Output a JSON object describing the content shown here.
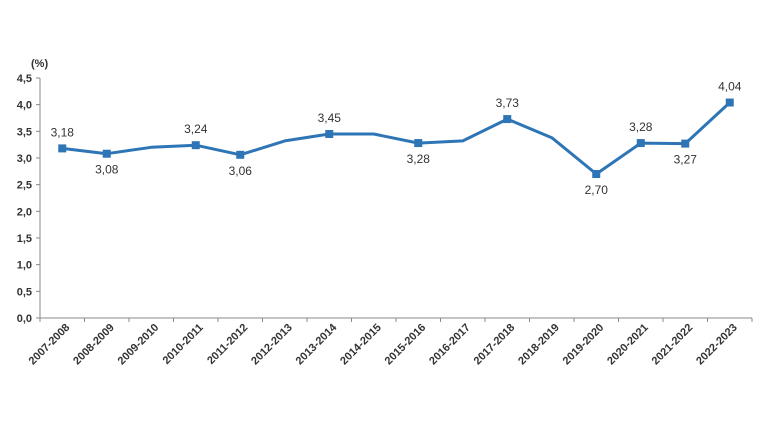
{
  "chart_data": {
    "type": "line",
    "title": "",
    "xlabel": "",
    "ylabel": "(%)",
    "ylim": [
      0,
      4.5
    ],
    "yticks": [
      "0,0",
      "0,5",
      "1,0",
      "1,5",
      "2,0",
      "2,5",
      "3,0",
      "3,5",
      "4,0",
      "4,5"
    ],
    "ytick_values": [
      0,
      0.5,
      1.0,
      1.5,
      2.0,
      2.5,
      3.0,
      3.5,
      4.0,
      4.5
    ],
    "grid": false,
    "legend": "none",
    "line_color": "#2E75B6",
    "categories": [
      "2007-2008",
      "2008-2009",
      "2009-2010",
      "2010-2011",
      "2011-2012",
      "2012-2013",
      "2013-2014",
      "2014-2015",
      "2015-2016",
      "2016-2017",
      "2017-2018",
      "2018-2019",
      "2019-2020",
      "2020-2021",
      "2021-2022",
      "2022-2023"
    ],
    "values": [
      3.18,
      3.08,
      3.2,
      3.24,
      3.06,
      3.32,
      3.45,
      3.45,
      3.28,
      3.32,
      3.73,
      3.38,
      2.7,
      3.28,
      3.27,
      4.04
    ],
    "labeled_points": [
      {
        "category": "2007-2008",
        "label": "3,18",
        "position": "above"
      },
      {
        "category": "2008-2009",
        "label": "3,08",
        "position": "below"
      },
      {
        "category": "2010-2011",
        "label": "3,24",
        "position": "above"
      },
      {
        "category": "2011-2012",
        "label": "3,06",
        "position": "below"
      },
      {
        "category": "2013-2014",
        "label": "3,45",
        "position": "above"
      },
      {
        "category": "2015-2016",
        "label": "3,28",
        "position": "below"
      },
      {
        "category": "2017-2018",
        "label": "3,73",
        "position": "above"
      },
      {
        "category": "2019-2020",
        "label": "2,70",
        "position": "below"
      },
      {
        "category": "2020-2021",
        "label": "3,28",
        "position": "above"
      },
      {
        "category": "2021-2022",
        "label": "3,27",
        "position": "below"
      },
      {
        "category": "2022-2023",
        "label": "4,04",
        "position": "above"
      }
    ],
    "markers": [
      "2007-2008",
      "2008-2009",
      "2010-2011",
      "2011-2012",
      "2013-2014",
      "2015-2016",
      "2017-2018",
      "2019-2020",
      "2020-2021",
      "2021-2022",
      "2022-2023"
    ]
  }
}
